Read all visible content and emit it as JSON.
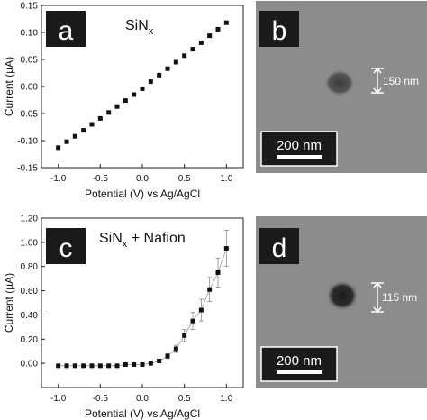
{
  "panels": {
    "a": {
      "letter": "a",
      "label_main": "SiN",
      "label_sub": "x",
      "label_rest": ""
    },
    "b": {
      "letter": "b",
      "feature_label": "150 nm",
      "scale_bar": "200 nm"
    },
    "c": {
      "letter": "c",
      "label_main": "SiN",
      "label_sub": "x",
      "label_rest": " + Nafion"
    },
    "d": {
      "letter": "d",
      "feature_label": "115 nm",
      "scale_bar": "200 nm"
    }
  },
  "colors": {
    "panel_badge": "#1a1a1a",
    "sem_background": "#8c8c8c",
    "marker": "#111111",
    "errorbar": "#888888"
  },
  "chart_data": [
    {
      "id": "a",
      "type": "scatter",
      "title": "",
      "xlabel": "Potential (V) vs Ag/AgCl",
      "ylabel": "Current (µA)",
      "xlim": [
        -1.2,
        1.2
      ],
      "ylim": [
        -0.15,
        0.15
      ],
      "xticks": [
        -1.0,
        -0.5,
        0.0,
        0.5,
        1.0
      ],
      "xtick_labels": [
        "-1.0",
        "-0.5",
        "0.0",
        "0.5",
        "1.0"
      ],
      "yticks": [
        -0.15,
        -0.1,
        -0.05,
        0.0,
        0.05,
        0.1,
        0.15
      ],
      "ytick_labels": [
        "-0.15",
        "-0.10",
        "-0.05",
        "0.00",
        "0.05",
        "0.10",
        "0.15"
      ],
      "grid": false,
      "x": [
        -1.0,
        -0.9,
        -0.8,
        -0.7,
        -0.6,
        -0.5,
        -0.4,
        -0.3,
        -0.2,
        -0.1,
        0.0,
        0.1,
        0.2,
        0.3,
        0.4,
        0.5,
        0.6,
        0.7,
        0.8,
        0.9,
        1.0
      ],
      "y": [
        -0.113,
        -0.102,
        -0.092,
        -0.081,
        -0.07,
        -0.059,
        -0.048,
        -0.037,
        -0.026,
        -0.015,
        -0.004,
        0.009,
        0.021,
        0.033,
        0.045,
        0.057,
        0.069,
        0.081,
        0.094,
        0.106,
        0.118
      ]
    },
    {
      "id": "c",
      "type": "scatter",
      "title": "",
      "xlabel": "Potential (V) vs Ag/AgCl",
      "ylabel": "Current (µA)",
      "xlim": [
        -1.2,
        1.2
      ],
      "ylim": [
        -0.2,
        1.2
      ],
      "xticks": [
        -1.0,
        -0.5,
        0.0,
        0.5,
        1.0
      ],
      "xtick_labels": [
        "-1.0",
        "-0.5",
        "0.0",
        "0.5",
        "1.0"
      ],
      "yticks": [
        -0.2,
        0.0,
        0.2,
        0.4,
        0.6,
        0.8,
        1.0,
        1.2
      ],
      "ytick_labels": [
        "",
        "0.00",
        "0.20",
        "0.40",
        "0.60",
        "0.80",
        "1.00",
        "1.20"
      ],
      "grid": false,
      "x": [
        -1.0,
        -0.9,
        -0.8,
        -0.7,
        -0.6,
        -0.5,
        -0.4,
        -0.3,
        -0.2,
        -0.1,
        0.0,
        0.1,
        0.2,
        0.3,
        0.4,
        0.5,
        0.6,
        0.7,
        0.8,
        0.9,
        1.0
      ],
      "y": [
        -0.02,
        -0.02,
        -0.02,
        -0.02,
        -0.02,
        -0.02,
        -0.02,
        -0.02,
        -0.01,
        -0.01,
        -0.01,
        0.0,
        0.02,
        0.06,
        0.12,
        0.23,
        0.35,
        0.44,
        0.61,
        0.75,
        0.95
      ],
      "yerr": [
        0,
        0,
        0,
        0,
        0,
        0,
        0,
        0,
        0,
        0,
        0,
        0,
        0,
        0.02,
        0.03,
        0.05,
        0.07,
        0.09,
        0.1,
        0.12,
        0.15
      ]
    }
  ]
}
